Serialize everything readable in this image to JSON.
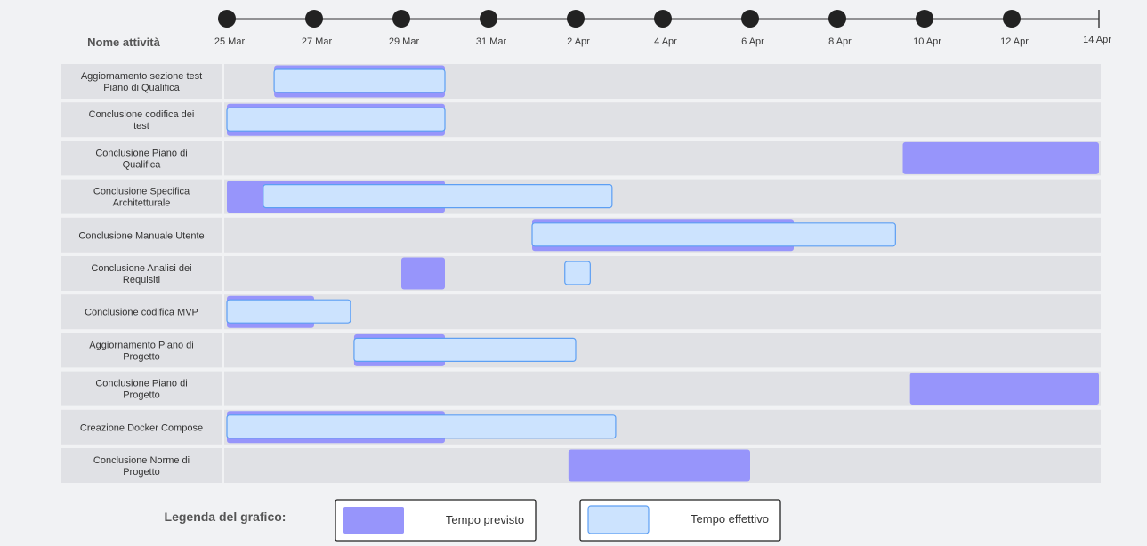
{
  "chart_data": {
    "type": "gantt",
    "header_label": "Nome attività",
    "x_axis": {
      "ticks": [
        "25 Mar",
        "27 Mar",
        "29 Mar",
        "31 Mar",
        "2 Apr",
        "4 Apr",
        "6 Apr",
        "8 Apr",
        "10 Apr",
        "12 Apr",
        "14 Apr"
      ],
      "start": "2024-03-25",
      "end": "2024-04-14"
    },
    "tasks": [
      {
        "name": "Aggiornamento sezione test Piano di Qualifica",
        "planned": [
          "2024-03-26T02:00",
          "2024-03-30"
        ],
        "actual": [
          "2024-03-26T02:00",
          "2024-03-30"
        ]
      },
      {
        "name": "Conclusione codifica dei test",
        "planned": [
          "2024-03-25",
          "2024-03-30"
        ],
        "actual": [
          "2024-03-25",
          "2024-03-30"
        ]
      },
      {
        "name": "Conclusione Piano di Qualifica",
        "planned": [
          "2024-04-09T12:00",
          "2024-04-14"
        ],
        "actual": null
      },
      {
        "name": "Conclusione Specifica Architetturale",
        "planned": [
          "2024-03-25",
          "2024-03-30"
        ],
        "actual": [
          "2024-03-25T20:00",
          "2024-04-02T20:00"
        ]
      },
      {
        "name": "Conclusione Manuale Utente",
        "planned": [
          "2024-04-01T00:00",
          "2024-04-07T00:00"
        ],
        "actual": [
          "2024-04-01T00:00",
          "2024-04-09T08:00"
        ]
      },
      {
        "name": "Conclusione Analisi dei Requisiti",
        "planned": [
          "2024-03-29",
          "2024-03-30"
        ],
        "actual": [
          "2024-04-01T18:00",
          "2024-04-02T08:00"
        ]
      },
      {
        "name": "Conclusione codifica MVP",
        "planned": [
          "2024-03-25",
          "2024-03-27"
        ],
        "actual": [
          "2024-03-25",
          "2024-03-27T20:00"
        ]
      },
      {
        "name": "Aggiornamento Piano di Progetto",
        "planned": [
          "2024-03-27T22:00",
          "2024-03-30"
        ],
        "actual": [
          "2024-03-27T22:00",
          "2024-04-02"
        ]
      },
      {
        "name": "Conclusione Piano di Progetto",
        "planned": [
          "2024-04-09T16:00",
          "2024-04-14"
        ],
        "actual": null
      },
      {
        "name": "Creazione Docker Compose",
        "planned": [
          "2024-03-25",
          "2024-03-30"
        ],
        "actual": [
          "2024-03-25",
          "2024-04-02T22:00"
        ]
      },
      {
        "name": "Conclusione Norme di Progetto",
        "planned": [
          "2024-04-01T20:00",
          "2024-04-06T00:00"
        ],
        "actual": null
      }
    ]
  },
  "legend": {
    "title": "Legenda del grafico:",
    "planned_label": "Tempo previsto",
    "actual_label": "Tempo effettivo"
  },
  "colors": {
    "planned": "#9795fb",
    "actual_fill": "#cce3fe",
    "actual_stroke": "#5d9ff3",
    "row_bg": "#e0e1e5",
    "label_bg": "#e0e1e5"
  }
}
